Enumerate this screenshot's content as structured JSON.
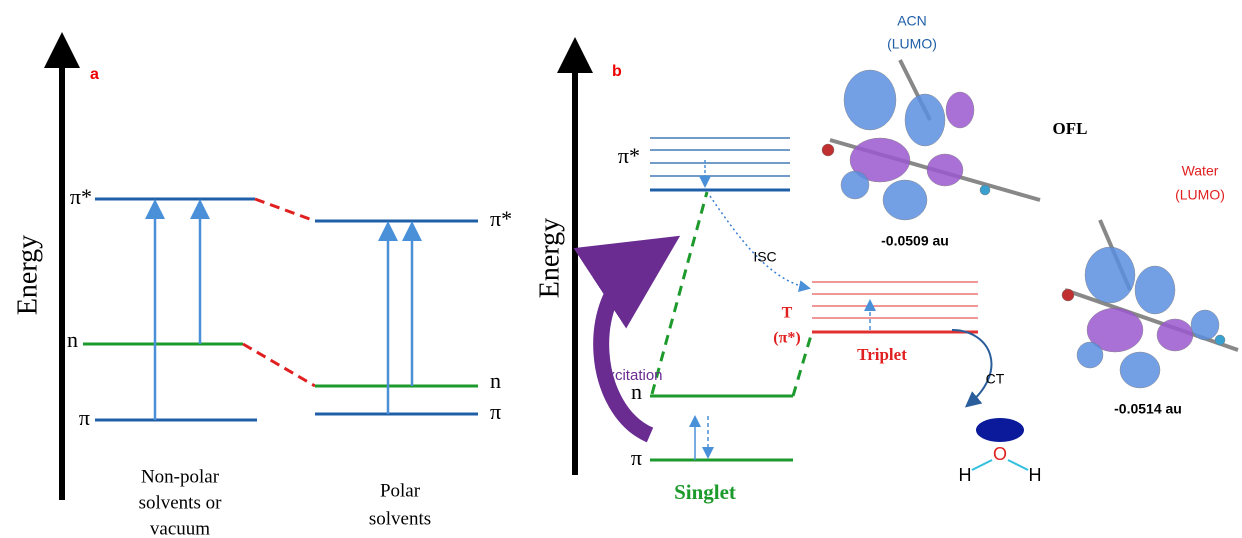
{
  "panel_a": {
    "label": "a",
    "axis": "Energy",
    "left": {
      "levels": [
        "π*",
        "n",
        "π"
      ],
      "caption": [
        "Non-polar",
        "solvents or",
        "vacuum"
      ]
    },
    "right": {
      "levels": [
        "π*",
        "n",
        "π"
      ],
      "caption": [
        "Polar",
        "solvents"
      ]
    }
  },
  "panel_b": {
    "label": "b",
    "axis": "Energy",
    "singlet": {
      "levels": [
        "π*",
        "n",
        "π"
      ],
      "name": "Singlet"
    },
    "excitation": "Excitation",
    "isc": "ISC",
    "triplet": {
      "symbol": "T",
      "state": "(π*)",
      "name": "Triplet"
    },
    "ct": "CT",
    "water_atoms": [
      "H",
      "O",
      "H"
    ],
    "acn": {
      "title": [
        "ACN",
        "(LUMO)"
      ],
      "energy": "-0.0509 au"
    },
    "molecule": "OFL",
    "water": {
      "title": [
        "Water",
        "(LUMO)"
      ],
      "energy": "-0.0514 au"
    }
  }
}
